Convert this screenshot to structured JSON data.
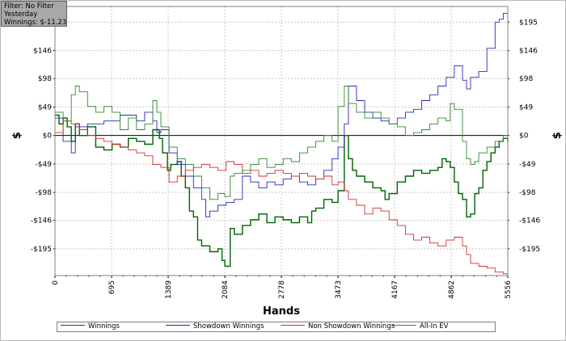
{
  "filter": {
    "line1": "Filter: No Filter",
    "line2": "Yesterday",
    "line3": "Winnings: $-11.23"
  },
  "colors": {
    "winnings": "#006400",
    "showdown": "#2828c0",
    "non_showdown": "#d03030",
    "allin_ev": "#2e8b2e",
    "grid": "#c8c8c8",
    "zero_line": "#000000"
  },
  "chart_data": {
    "type": "line",
    "xlabel": "Hands",
    "ylabel": "$",
    "xlim": [
      0,
      5556
    ],
    "ylim": [
      -241,
      222
    ],
    "x_ticks": [
      0,
      695,
      1389,
      2084,
      2778,
      3473,
      4167,
      4862,
      5556
    ],
    "x_tick_labels": [
      "0",
      "695",
      "1389",
      "2084",
      "2778",
      "3473",
      "4167",
      "4862",
      "5556"
    ],
    "y_ticks": [
      195,
      146,
      98,
      49,
      0,
      -49,
      -98,
      -146,
      -195
    ],
    "y_tick_labels": [
      "$195",
      "$146",
      "$98",
      "$49",
      "$0",
      "-$49",
      "-$98",
      "-$146",
      "-$195"
    ],
    "grid": true,
    "legend_position": "bottom",
    "series": [
      {
        "name": "Winnings",
        "key": "winnings",
        "points": [
          [
            0,
            35
          ],
          [
            50,
            20
          ],
          [
            100,
            30
          ],
          [
            150,
            15
          ],
          [
            200,
            -10
          ],
          [
            250,
            20
          ],
          [
            300,
            0
          ],
          [
            400,
            15
          ],
          [
            500,
            -20
          ],
          [
            600,
            -25
          ],
          [
            700,
            -15
          ],
          [
            800,
            -20
          ],
          [
            900,
            -5
          ],
          [
            1000,
            -10
          ],
          [
            1100,
            -15
          ],
          [
            1200,
            10
          ],
          [
            1280,
            -5
          ],
          [
            1320,
            -30
          ],
          [
            1380,
            -60
          ],
          [
            1420,
            -50
          ],
          [
            1500,
            -45
          ],
          [
            1550,
            -70
          ],
          [
            1600,
            -90
          ],
          [
            1650,
            -130
          ],
          [
            1700,
            -140
          ],
          [
            1750,
            -180
          ],
          [
            1800,
            -190
          ],
          [
            1900,
            -200
          ],
          [
            1950,
            -200
          ],
          [
            2000,
            -195
          ],
          [
            2050,
            -215
          ],
          [
            2084,
            -225
          ],
          [
            2150,
            -160
          ],
          [
            2200,
            -170
          ],
          [
            2300,
            -155
          ],
          [
            2400,
            -145
          ],
          [
            2500,
            -135
          ],
          [
            2600,
            -150
          ],
          [
            2700,
            -140
          ],
          [
            2800,
            -145
          ],
          [
            2900,
            -150
          ],
          [
            3000,
            -140
          ],
          [
            3100,
            -150
          ],
          [
            3150,
            -130
          ],
          [
            3200,
            -125
          ],
          [
            3300,
            -110
          ],
          [
            3400,
            -115
          ],
          [
            3473,
            -95
          ],
          [
            3550,
            0
          ],
          [
            3600,
            -40
          ],
          [
            3650,
            -60
          ],
          [
            3700,
            -70
          ],
          [
            3800,
            -80
          ],
          [
            3900,
            -90
          ],
          [
            4000,
            -95
          ],
          [
            4050,
            -110
          ],
          [
            4100,
            -100
          ],
          [
            4200,
            -80
          ],
          [
            4300,
            -70
          ],
          [
            4400,
            -60
          ],
          [
            4500,
            -65
          ],
          [
            4600,
            -60
          ],
          [
            4700,
            -55
          ],
          [
            4750,
            -40
          ],
          [
            4800,
            -45
          ],
          [
            4850,
            -55
          ],
          [
            4900,
            -80
          ],
          [
            4950,
            -100
          ],
          [
            5000,
            -110
          ],
          [
            5050,
            -140
          ],
          [
            5100,
            -135
          ],
          [
            5150,
            -100
          ],
          [
            5200,
            -90
          ],
          [
            5250,
            -60
          ],
          [
            5300,
            -45
          ],
          [
            5350,
            -30
          ],
          [
            5400,
            -20
          ],
          [
            5450,
            -10
          ],
          [
            5500,
            -5
          ],
          [
            5556,
            -11
          ]
        ]
      },
      {
        "name": "Showdown Winnings",
        "key": "showdown",
        "points": [
          [
            0,
            30
          ],
          [
            100,
            -10
          ],
          [
            200,
            -30
          ],
          [
            250,
            15
          ],
          [
            400,
            20
          ],
          [
            600,
            25
          ],
          [
            800,
            35
          ],
          [
            1000,
            25
          ],
          [
            1100,
            40
          ],
          [
            1200,
            25
          ],
          [
            1250,
            5
          ],
          [
            1300,
            10
          ],
          [
            1400,
            -30
          ],
          [
            1500,
            -50
          ],
          [
            1600,
            -70
          ],
          [
            1700,
            -90
          ],
          [
            1800,
            -110
          ],
          [
            1850,
            -140
          ],
          [
            1900,
            -130
          ],
          [
            2000,
            -120
          ],
          [
            2100,
            -115
          ],
          [
            2200,
            -110
          ],
          [
            2300,
            -70
          ],
          [
            2400,
            -80
          ],
          [
            2500,
            -90
          ],
          [
            2600,
            -80
          ],
          [
            2700,
            -85
          ],
          [
            2800,
            -75
          ],
          [
            2900,
            -70
          ],
          [
            3000,
            -80
          ],
          [
            3100,
            -85
          ],
          [
            3200,
            -75
          ],
          [
            3300,
            -60
          ],
          [
            3400,
            -40
          ],
          [
            3473,
            -20
          ],
          [
            3550,
            20
          ],
          [
            3600,
            85
          ],
          [
            3700,
            60
          ],
          [
            3800,
            40
          ],
          [
            3900,
            30
          ],
          [
            4000,
            25
          ],
          [
            4100,
            20
          ],
          [
            4200,
            30
          ],
          [
            4300,
            40
          ],
          [
            4400,
            45
          ],
          [
            4500,
            60
          ],
          [
            4600,
            70
          ],
          [
            4700,
            85
          ],
          [
            4800,
            100
          ],
          [
            4900,
            120
          ],
          [
            5000,
            95
          ],
          [
            5050,
            80
          ],
          [
            5100,
            100
          ],
          [
            5200,
            110
          ],
          [
            5300,
            150
          ],
          [
            5400,
            195
          ],
          [
            5450,
            200
          ],
          [
            5500,
            210
          ],
          [
            5556,
            222
          ]
        ]
      },
      {
        "name": "Non Showdown Winnings",
        "key": "non_showdown",
        "points": [
          [
            0,
            5
          ],
          [
            100,
            25
          ],
          [
            200,
            20
          ],
          [
            300,
            10
          ],
          [
            400,
            0
          ],
          [
            500,
            -5
          ],
          [
            600,
            -10
          ],
          [
            700,
            -15
          ],
          [
            800,
            -20
          ],
          [
            900,
            -25
          ],
          [
            1000,
            -30
          ],
          [
            1100,
            -35
          ],
          [
            1200,
            -50
          ],
          [
            1300,
            -55
          ],
          [
            1400,
            -80
          ],
          [
            1500,
            -70
          ],
          [
            1600,
            -60
          ],
          [
            1700,
            -55
          ],
          [
            1800,
            -50
          ],
          [
            1900,
            -55
          ],
          [
            2000,
            -60
          ],
          [
            2100,
            -45
          ],
          [
            2200,
            -50
          ],
          [
            2300,
            -65
          ],
          [
            2400,
            -60
          ],
          [
            2500,
            -70
          ],
          [
            2600,
            -65
          ],
          [
            2700,
            -60
          ],
          [
            2800,
            -65
          ],
          [
            2900,
            -70
          ],
          [
            3000,
            -65
          ],
          [
            3100,
            -70
          ],
          [
            3200,
            -75
          ],
          [
            3300,
            -70
          ],
          [
            3400,
            -85
          ],
          [
            3473,
            -80
          ],
          [
            3550,
            -95
          ],
          [
            3600,
            -110
          ],
          [
            3700,
            -120
          ],
          [
            3800,
            -135
          ],
          [
            3900,
            -125
          ],
          [
            4000,
            -130
          ],
          [
            4100,
            -145
          ],
          [
            4200,
            -155
          ],
          [
            4300,
            -170
          ],
          [
            4400,
            -180
          ],
          [
            4500,
            -175
          ],
          [
            4600,
            -185
          ],
          [
            4700,
            -190
          ],
          [
            4800,
            -180
          ],
          [
            4900,
            -175
          ],
          [
            5000,
            -190
          ],
          [
            5050,
            -205
          ],
          [
            5100,
            -220
          ],
          [
            5200,
            -225
          ],
          [
            5300,
            -228
          ],
          [
            5400,
            -235
          ],
          [
            5500,
            -238
          ],
          [
            5556,
            -230
          ]
        ]
      },
      {
        "name": "All-In EV",
        "key": "allin_ev",
        "points": [
          [
            0,
            40
          ],
          [
            100,
            25
          ],
          [
            200,
            70
          ],
          [
            250,
            85
          ],
          [
            300,
            75
          ],
          [
            400,
            50
          ],
          [
            500,
            40
          ],
          [
            600,
            50
          ],
          [
            700,
            40
          ],
          [
            800,
            10
          ],
          [
            900,
            30
          ],
          [
            1000,
            10
          ],
          [
            1100,
            20
          ],
          [
            1200,
            60
          ],
          [
            1250,
            40
          ],
          [
            1300,
            15
          ],
          [
            1400,
            -20
          ],
          [
            1500,
            -40
          ],
          [
            1600,
            -50
          ],
          [
            1700,
            -70
          ],
          [
            1800,
            -90
          ],
          [
            1900,
            -110
          ],
          [
            2000,
            -100
          ],
          [
            2084,
            -105
          ],
          [
            2150,
            -70
          ],
          [
            2200,
            -65
          ],
          [
            2300,
            -60
          ],
          [
            2400,
            -50
          ],
          [
            2500,
            -40
          ],
          [
            2600,
            -55
          ],
          [
            2700,
            -50
          ],
          [
            2800,
            -40
          ],
          [
            2900,
            -45
          ],
          [
            3000,
            -30
          ],
          [
            3100,
            -20
          ],
          [
            3200,
            -10
          ],
          [
            3300,
            0
          ],
          [
            3400,
            -10
          ],
          [
            3473,
            50
          ],
          [
            3550,
            85
          ],
          [
            3600,
            55
          ],
          [
            3700,
            40
          ],
          [
            3800,
            30
          ],
          [
            3900,
            40
          ],
          [
            4000,
            30
          ],
          [
            4100,
            20
          ],
          [
            4200,
            15
          ],
          [
            4300,
            0
          ],
          [
            4400,
            5
          ],
          [
            4500,
            10
          ],
          [
            4600,
            20
          ],
          [
            4700,
            30
          ],
          [
            4800,
            25
          ],
          [
            4850,
            55
          ],
          [
            4900,
            45
          ],
          [
            5000,
            -10
          ],
          [
            5050,
            -40
          ],
          [
            5100,
            -50
          ],
          [
            5150,
            -45
          ],
          [
            5200,
            -30
          ],
          [
            5300,
            -20
          ],
          [
            5400,
            -10
          ],
          [
            5500,
            0
          ],
          [
            5556,
            -5
          ]
        ]
      }
    ]
  },
  "legend": [
    {
      "label": "Winnings",
      "key": "winnings"
    },
    {
      "label": "Showdown Winnings",
      "key": "showdown"
    },
    {
      "label": "Non Showdown Winnings",
      "key": "non_showdown"
    },
    {
      "label": "All-In EV",
      "key": "allin_ev"
    }
  ]
}
